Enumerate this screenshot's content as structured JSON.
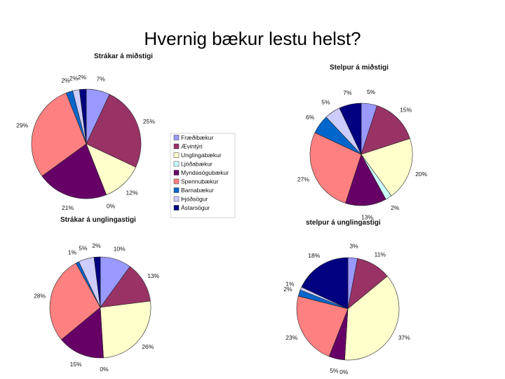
{
  "slide_title": "Hvernig bækur lestu helst?",
  "legend": {
    "items": [
      {
        "label": "Fræðibækur",
        "color": "#9999FF"
      },
      {
        "label": "Ævintýri",
        "color": "#993366"
      },
      {
        "label": "Unglingabækur",
        "color": "#FFFFCC"
      },
      {
        "label": "Ljóðabækur",
        "color": "#CCFFFF"
      },
      {
        "label": "Myndasögubækur",
        "color": "#660066"
      },
      {
        "label": "Spennubækur",
        "color": "#FF8080"
      },
      {
        "label": "Barnabækur",
        "color": "#0066CC"
      },
      {
        "label": "Þjóðsögur",
        "color": "#CCCCFF"
      },
      {
        "label": "Ástarsögur",
        "color": "#000080"
      }
    ]
  },
  "chart_data": [
    {
      "type": "pie",
      "title": "Strákar á miðstigi",
      "categories": [
        "Fræðibækur",
        "Ævintýri",
        "Unglingabækur",
        "Ljóðabækur",
        "Myndasögubækur",
        "Spennubækur",
        "Barnabækur",
        "Þjóðsögur",
        "Ástarsögur"
      ],
      "values": [
        7,
        25,
        12,
        0,
        21,
        29,
        2,
        2,
        2
      ],
      "labels": [
        "7%",
        "25%",
        "12%",
        "0%",
        "21%",
        "29%",
        "2%",
        "2%",
        "2%"
      ]
    },
    {
      "type": "pie",
      "title": "Stelpur á miðstigi",
      "categories": [
        "Fræðibækur",
        "Ævintýri",
        "Unglingabækur",
        "Ljóðabækur",
        "Myndasögubækur",
        "Spennubækur",
        "Barnabækur",
        "Þjóðsögur",
        "Ástarsögur"
      ],
      "values": [
        5,
        15,
        20,
        2,
        13,
        27,
        6,
        5,
        7
      ],
      "labels": [
        "5%",
        "15%",
        "20%",
        "2%",
        "13%",
        "27%",
        "6%",
        "5%",
        "7%"
      ]
    },
    {
      "type": "pie",
      "title": "Strákar á unglingastigi",
      "categories": [
        "Fræðibækur",
        "Ævintýri",
        "Unglingabækur",
        "Ljóðabækur",
        "Myndasögubækur",
        "Spennubækur",
        "Barnabækur",
        "Þjóðsögur",
        "Ástarsögur"
      ],
      "values": [
        10,
        13,
        26,
        0,
        15,
        28,
        1,
        5,
        2
      ],
      "labels": [
        "10%",
        "13%",
        "26%",
        "0%",
        "15%",
        "28%",
        "1%",
        "5%",
        "2%"
      ]
    },
    {
      "type": "pie",
      "title": "stelpur á unglingastigi",
      "categories": [
        "Fræðibækur",
        "Ævintýri",
        "Unglingabækur",
        "Ljóðabækur",
        "Myndasögubækur",
        "Spennubækur",
        "Barnabækur",
        "Þjóðsögur",
        "Ástarsögur"
      ],
      "values": [
        3,
        11,
        37,
        0,
        5,
        23,
        2,
        1,
        18
      ],
      "labels": [
        "3%",
        "11%",
        "37%",
        "0%",
        "5%",
        "23%",
        "2%",
        "1%",
        "18%"
      ]
    }
  ]
}
